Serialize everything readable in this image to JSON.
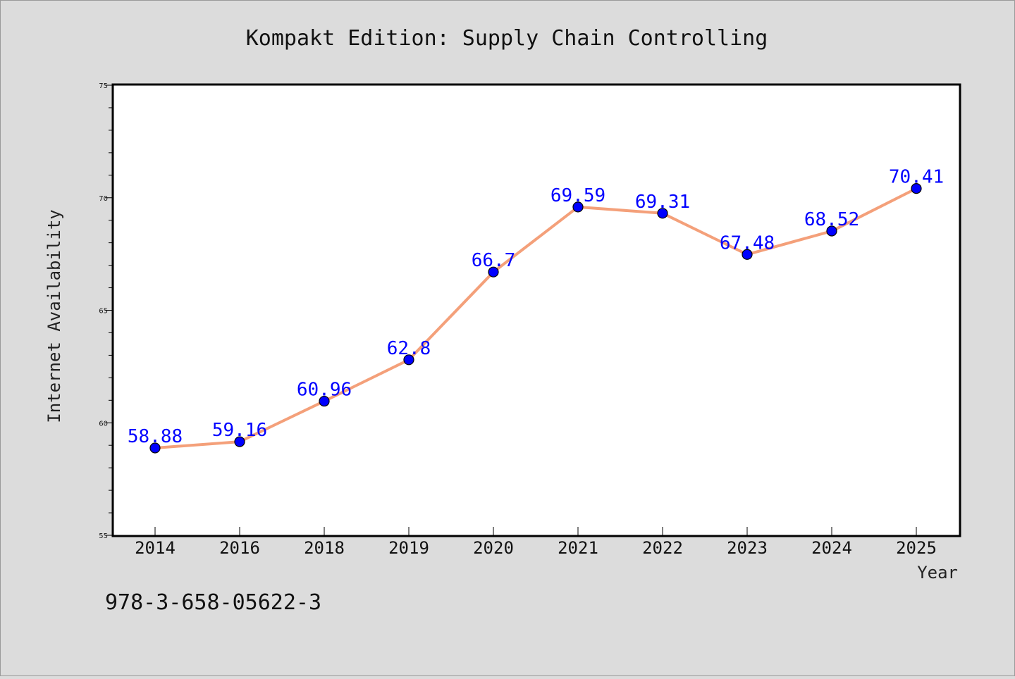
{
  "chart_data": {
    "type": "line",
    "title": "Kompakt Edition: Supply Chain Controlling",
    "xlabel": "Year",
    "ylabel": "Internet Availability",
    "categories": [
      "2014",
      "2016",
      "2018",
      "2019",
      "2020",
      "2021",
      "2022",
      "2023",
      "2024",
      "2025"
    ],
    "series": [
      {
        "values": [
          58.88,
          59.16,
          60.96,
          62.8,
          66.7,
          69.59,
          69.31,
          67.48,
          68.52,
          70.41
        ],
        "data_labels": [
          "58.88",
          "59.16",
          "60.96",
          "62.8",
          "66.7",
          "69.59",
          "69.31",
          "67.48",
          "68.52",
          "70.41"
        ]
      }
    ],
    "ylim": [
      55,
      75
    ],
    "yticks": [
      "55",
      "60",
      "65",
      "70",
      "75"
    ],
    "grid": false,
    "legend": "none",
    "colors": {
      "line": "#f4a07a",
      "marker": "#0000ff",
      "data_label": "#0000ff",
      "background": "#dcdcdc",
      "plot_background": "#ffffff"
    }
  },
  "footer": {
    "isbn": "978-3-658-05622-3"
  }
}
